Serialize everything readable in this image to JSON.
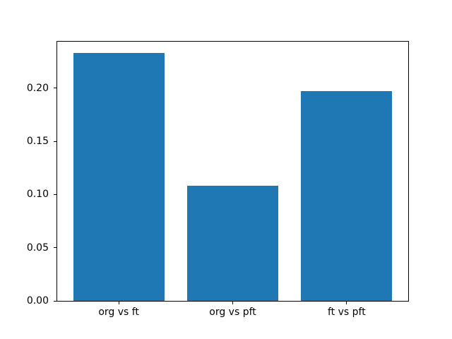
{
  "figure": {
    "background_color": "#ffffff",
    "spine_color": "#000000",
    "text_color": "#000000"
  },
  "chart_data": {
    "type": "bar",
    "title": "",
    "xlabel": "",
    "ylabel": "",
    "categories": [
      "org vs ft",
      "org vs pft",
      "ft vs pft"
    ],
    "values": [
      0.233,
      0.108,
      0.197
    ],
    "bar_color": "#1f77b4",
    "bar_width_units": 0.8,
    "xlim": [
      -0.54,
      2.54
    ],
    "ylim": [
      0,
      0.2437
    ],
    "yticks": [
      0.0,
      0.05,
      0.1,
      0.15,
      0.2
    ],
    "ytick_labels": [
      "0.00",
      "0.05",
      "0.10",
      "0.15",
      "0.20"
    ],
    "grid": false,
    "legend": null
  }
}
